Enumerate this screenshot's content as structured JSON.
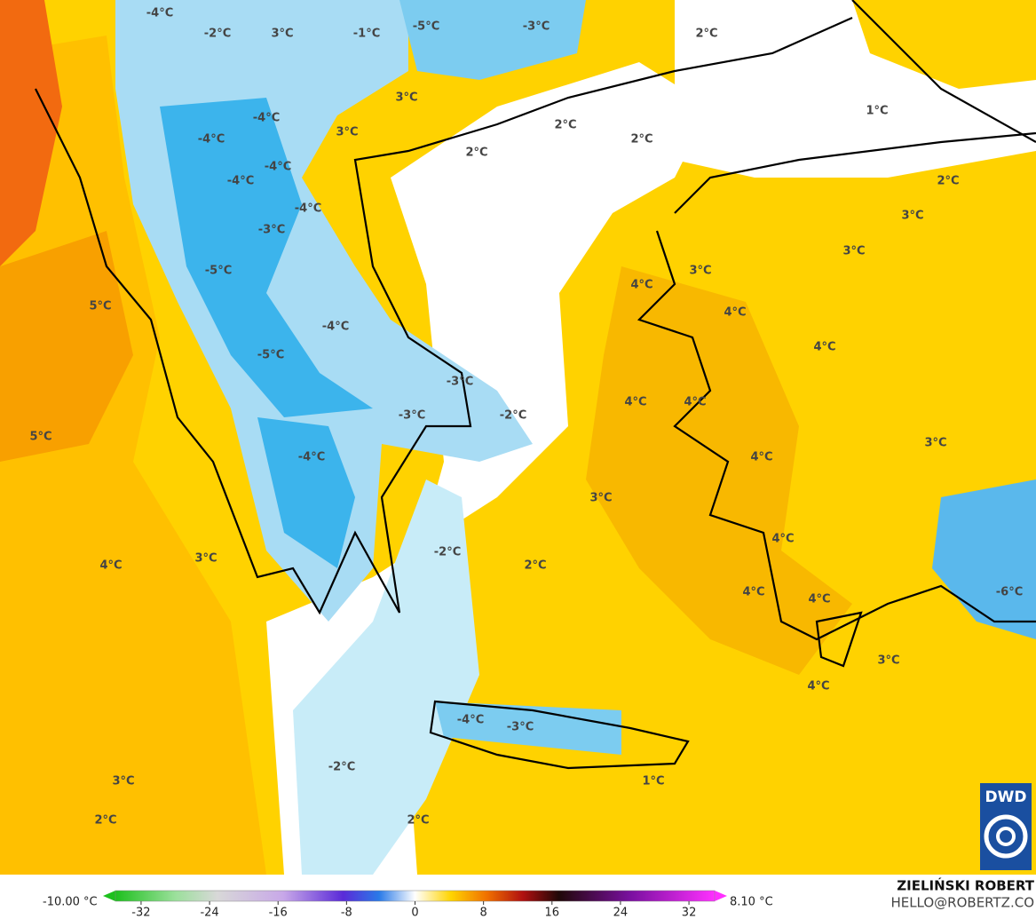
{
  "map_labels": [
    "-4°C",
    "-2°C",
    "3°C",
    "-1°C",
    "-5°C",
    "-3°C",
    "2°C",
    "3°C",
    "-4°C",
    "3°C",
    "2°C",
    "2°C",
    "1°C",
    "-4°C",
    "2°C",
    "-4°C",
    "-4°C",
    "2°C",
    "-4°C",
    "3°C",
    "-3°C",
    "3°C",
    "3°C",
    "-5°C",
    "4°C",
    "5°C",
    "4°C",
    "-4°C",
    "4°C",
    "-5°C",
    "-3°C",
    "4°C",
    "4°C",
    "-2°C",
    "-3°C",
    "5°C",
    "3°C",
    "-4°C",
    "4°C",
    "3°C",
    "4°C",
    "-2°C",
    "3°C",
    "4°C",
    "2°C",
    "4°C",
    "-6°C",
    "4°C",
    "3°C",
    "4°C",
    "-4°C",
    "-3°C",
    "-2°C",
    "3°C",
    "1°C",
    "2°C",
    "2°C"
  ],
  "colorbar": {
    "min_label": "-10.00 °C",
    "max_label": "8.10 °C",
    "lim": [
      -35,
      35
    ],
    "ticks": [
      -32,
      -24,
      -16,
      -8,
      0,
      8,
      16,
      24,
      32
    ]
  },
  "credit": {
    "name": "ZIELIŃSKI ROBERT",
    "contact": "HELLO@ROBERTZ.CO",
    "logo": "DWD"
  }
}
